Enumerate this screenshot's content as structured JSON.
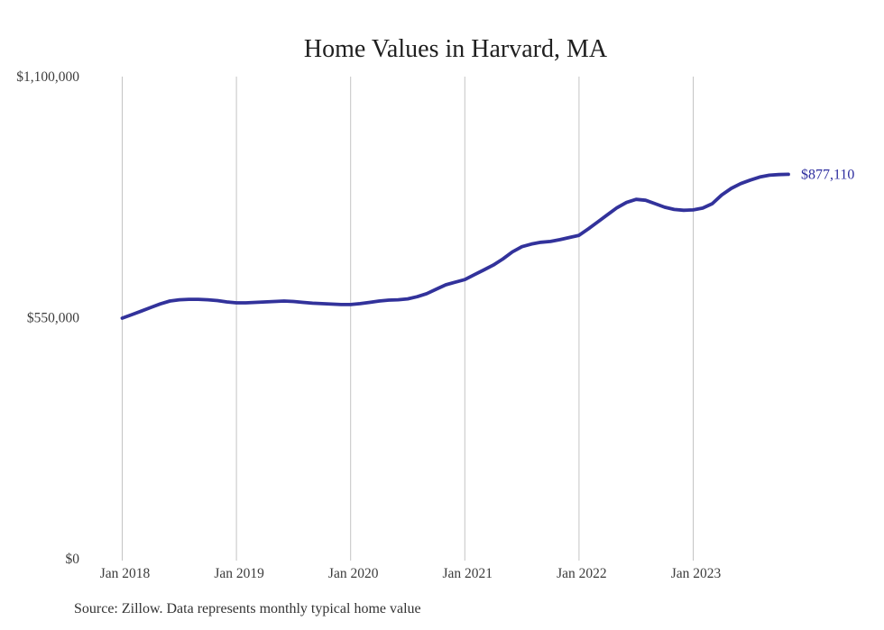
{
  "chart_data": {
    "type": "line",
    "title": "Home Values in Harvard, MA",
    "series_name": "Monthly typical home value",
    "end_label": "$877,110",
    "end_value": 877110,
    "source_note": "Source: Zillow. Data represents monthly typical home value",
    "line_color": "#32329b",
    "label_color": "#2e2e9f",
    "grid_color": "#c4c4c4",
    "background": "#ffffff",
    "legend": "none",
    "grid": "vertical-only",
    "ylim": [
      0,
      1100000
    ],
    "y_ticks": [
      {
        "label": "$1,100,000",
        "value": 1100000
      },
      {
        "label": "$550,000",
        "value": 550000
      },
      {
        "label": "$0",
        "value": 0
      }
    ],
    "x_ticks": [
      "Jan 2018",
      "Jan 2019",
      "Jan 2020",
      "Jan 2021",
      "Jan 2022",
      "Jan 2023"
    ],
    "months": [
      "Jan 2018",
      "Feb 2018",
      "Mar 2018",
      "Apr 2018",
      "May 2018",
      "Jun 2018",
      "Jul 2018",
      "Aug 2018",
      "Sep 2018",
      "Oct 2018",
      "Nov 2018",
      "Dec 2018",
      "Jan 2019",
      "Feb 2019",
      "Mar 2019",
      "Apr 2019",
      "May 2019",
      "Jun 2019",
      "Jul 2019",
      "Aug 2019",
      "Sep 2019",
      "Oct 2019",
      "Nov 2019",
      "Dec 2019",
      "Jan 2020",
      "Feb 2020",
      "Mar 2020",
      "Apr 2020",
      "May 2020",
      "Jun 2020",
      "Jul 2020",
      "Aug 2020",
      "Sep 2020",
      "Oct 2020",
      "Nov 2020",
      "Dec 2020",
      "Jan 2021",
      "Feb 2021",
      "Mar 2021",
      "Apr 2021",
      "May 2021",
      "Jun 2021",
      "Jul 2021",
      "Aug 2021",
      "Sep 2021",
      "Oct 2021",
      "Nov 2021",
      "Dec 2021",
      "Jan 2022",
      "Feb 2022",
      "Mar 2022",
      "Apr 2022",
      "May 2022",
      "Jun 2022",
      "Jul 2022",
      "Aug 2022",
      "Sep 2022",
      "Oct 2022",
      "Nov 2022",
      "Dec 2022",
      "Jan 2023",
      "Feb 2023",
      "Mar 2023",
      "Apr 2023",
      "May 2023",
      "Jun 2023",
      "Jul 2023",
      "Aug 2023",
      "Sep 2023",
      "Oct 2023",
      "Nov 2023"
    ],
    "values": [
      549000,
      557000,
      565000,
      573500,
      581500,
      588000,
      591000,
      592000,
      592000,
      591000,
      589000,
      586000,
      584000,
      584000,
      585000,
      586000,
      587000,
      588000,
      587000,
      585000,
      583000,
      582000,
      581000,
      580000,
      580000,
      582000,
      585000,
      588000,
      590000,
      591000,
      593000,
      598000,
      605000,
      615000,
      625000,
      631000,
      637000,
      648000,
      659000,
      670000,
      684000,
      700000,
      712000,
      718000,
      722000,
      724000,
      728000,
      733000,
      738000,
      753000,
      769000,
      785000,
      801000,
      813000,
      820000,
      818000,
      810000,
      802000,
      797000,
      795000,
      796000,
      800000,
      810000,
      830000,
      845000,
      856000,
      864000,
      871000,
      875000,
      876500,
      877110
    ]
  }
}
